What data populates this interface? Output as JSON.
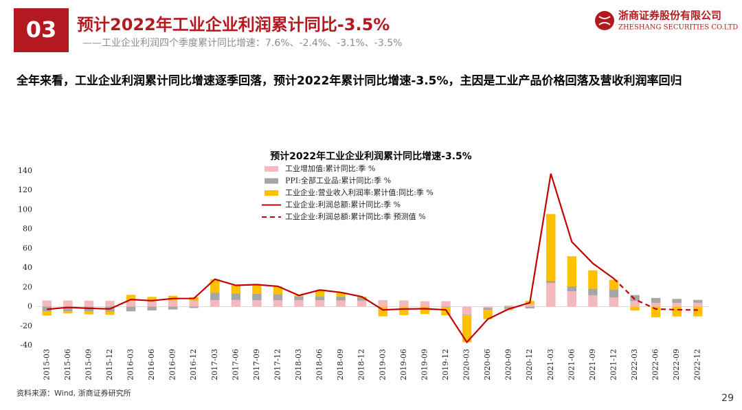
{
  "header": {
    "section": "03",
    "title": "预计2022年工业企业利润累计同比-3.5%",
    "subtitle": "——工业企业利润四个季度累计同比增速：7.6%、-2.4%、-3.1%、-3.5%"
  },
  "logo": {
    "name": "浙商证券股份有限公司",
    "name_en": "ZHESHANG SECURITIES CO.LTD"
  },
  "headline": "全年来看，工业企业利润累计同比增速逐季回落，预计2022年累计同比增速-3.5%，主因是工业产品价格回落及营收利润率回归",
  "chart_data": {
    "type": "combo",
    "title": "预计2022年工业企业利润累计同比增速-3.5%",
    "categories": [
      "2015-03",
      "2015-06",
      "2015-09",
      "2015-12",
      "2016-03",
      "2016-06",
      "2016-09",
      "2016-12",
      "2017-03",
      "2017-06",
      "2017-09",
      "2017-12",
      "2018-03",
      "2018-06",
      "2018-09",
      "2018-12",
      "2019-03",
      "2019-06",
      "2019-09",
      "2019-12",
      "2020-03",
      "2020-06",
      "2020-09",
      "2020-12",
      "2021-03",
      "2021-06",
      "2021-09",
      "2021-12",
      "2022-03",
      "2022-06",
      "2022-09",
      "2022-12"
    ],
    "series": [
      {
        "name": "工业增加值:累计同比:季 %",
        "type": "bar",
        "color": "#f4b8bd",
        "values": [
          6.4,
          6.3,
          6.2,
          6.1,
          5.8,
          6.0,
          6.0,
          6.0,
          6.8,
          6.9,
          6.7,
          6.6,
          6.8,
          6.7,
          6.4,
          6.2,
          6.5,
          6.0,
          5.6,
          5.7,
          -8.4,
          -1.3,
          1.2,
          2.8,
          24.5,
          15.9,
          11.8,
          9.6,
          6.0,
          4.0,
          4.0,
          4.0
        ]
      },
      {
        "name": "PPI:全部工业品:累计同比:季 %",
        "type": "bar",
        "color": "#a6a6a6",
        "values": [
          -4.6,
          -4.6,
          -5.0,
          -5.2,
          -4.8,
          -3.9,
          -2.9,
          -1.4,
          7.4,
          6.6,
          6.5,
          6.3,
          3.7,
          3.9,
          4.1,
          3.5,
          0.2,
          0.3,
          0.0,
          -0.3,
          -0.6,
          -1.9,
          -2.0,
          -1.8,
          2.1,
          5.1,
          6.7,
          8.1,
          6.0,
          5.0,
          4.0,
          3.0
        ]
      },
      {
        "name": "工业企业:营业收入利润率:累计值:同比:季 %",
        "type": "bar",
        "color": "#ffc000",
        "values": [
          -4.5,
          -2.4,
          -2.9,
          -3.2,
          6.4,
          4.1,
          5.3,
          3.9,
          14.1,
          8.5,
          9.6,
          8.1,
          1.1,
          6.6,
          4.2,
          0.6,
          -10.0,
          -8.7,
          -7.7,
          -8.7,
          -27.7,
          -9.6,
          -1.6,
          3.1,
          69.0,
          31.0,
          19.0,
          10.0,
          -4.0,
          -11.0,
          -10.0,
          -10.0
        ]
      },
      {
        "name": "工业企业:利润总额:累计同比:季 %",
        "type": "line",
        "color": "#c00000",
        "values": [
          -2.7,
          -0.7,
          -1.7,
          -2.3,
          7.4,
          6.2,
          8.4,
          8.5,
          28.3,
          22.0,
          22.8,
          21.0,
          11.6,
          17.2,
          14.7,
          10.3,
          -3.3,
          -2.4,
          -2.1,
          -3.3,
          -36.7,
          -12.8,
          -2.4,
          4.1,
          137.3,
          66.9,
          44.7,
          29.0,
          null,
          null,
          null,
          null
        ]
      },
      {
        "name": "工业企业:利润总额:累计同比:季 预测值 %",
        "type": "line",
        "dashed": true,
        "color": "#c00000",
        "values": [
          null,
          null,
          null,
          null,
          null,
          null,
          null,
          null,
          null,
          null,
          null,
          null,
          null,
          null,
          null,
          null,
          null,
          null,
          null,
          null,
          null,
          null,
          null,
          null,
          null,
          null,
          null,
          29.0,
          7.6,
          -2.4,
          -3.1,
          -3.5
        ]
      }
    ],
    "ylim": [
      -40,
      140
    ],
    "yticks": [
      -40,
      -20,
      0,
      20,
      40,
      60,
      80,
      100,
      120,
      140
    ],
    "grid": false,
    "legend": "top-left"
  },
  "source": "资料来源：Wind, 浙商证券研究所",
  "page_number": "29"
}
